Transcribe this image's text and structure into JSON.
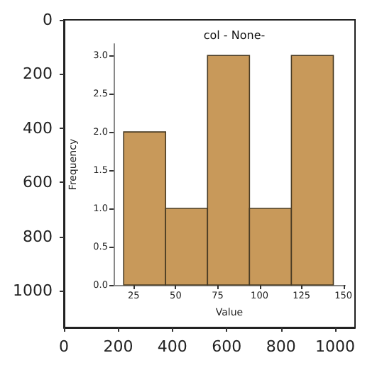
{
  "chart_data": [
    {
      "type": "scatter",
      "xlim": [
        0,
        1073
      ],
      "ylim": [
        1136,
        0
      ],
      "xticks": [
        0,
        200,
        400,
        600,
        800,
        1000
      ],
      "yticks": [
        0,
        200,
        400,
        600,
        800,
        1000
      ]
    },
    {
      "type": "histogram",
      "title": "col - None-",
      "xlabel": "Value",
      "ylabel": "Frequency",
      "color": "#c8995a",
      "bins": [
        19,
        44,
        69,
        94,
        119,
        144
      ],
      "values": [
        2,
        1,
        3,
        1,
        3
      ],
      "xlim": [
        13,
        151
      ],
      "ylim": [
        0,
        3.15
      ],
      "xticks": [
        25,
        50,
        75,
        100,
        125,
        150
      ],
      "yticks": [
        {
          "value": 0,
          "label": "0.0"
        },
        {
          "value": 0.5,
          "label": "0.5"
        },
        {
          "value": 1,
          "label": "1.0"
        },
        {
          "value": 1.5,
          "label": "1.5"
        },
        {
          "value": 2,
          "label": "2.0"
        },
        {
          "value": 2.5,
          "label": "2.5"
        },
        {
          "value": 3,
          "label": "3.0"
        }
      ],
      "grid": false
    }
  ]
}
